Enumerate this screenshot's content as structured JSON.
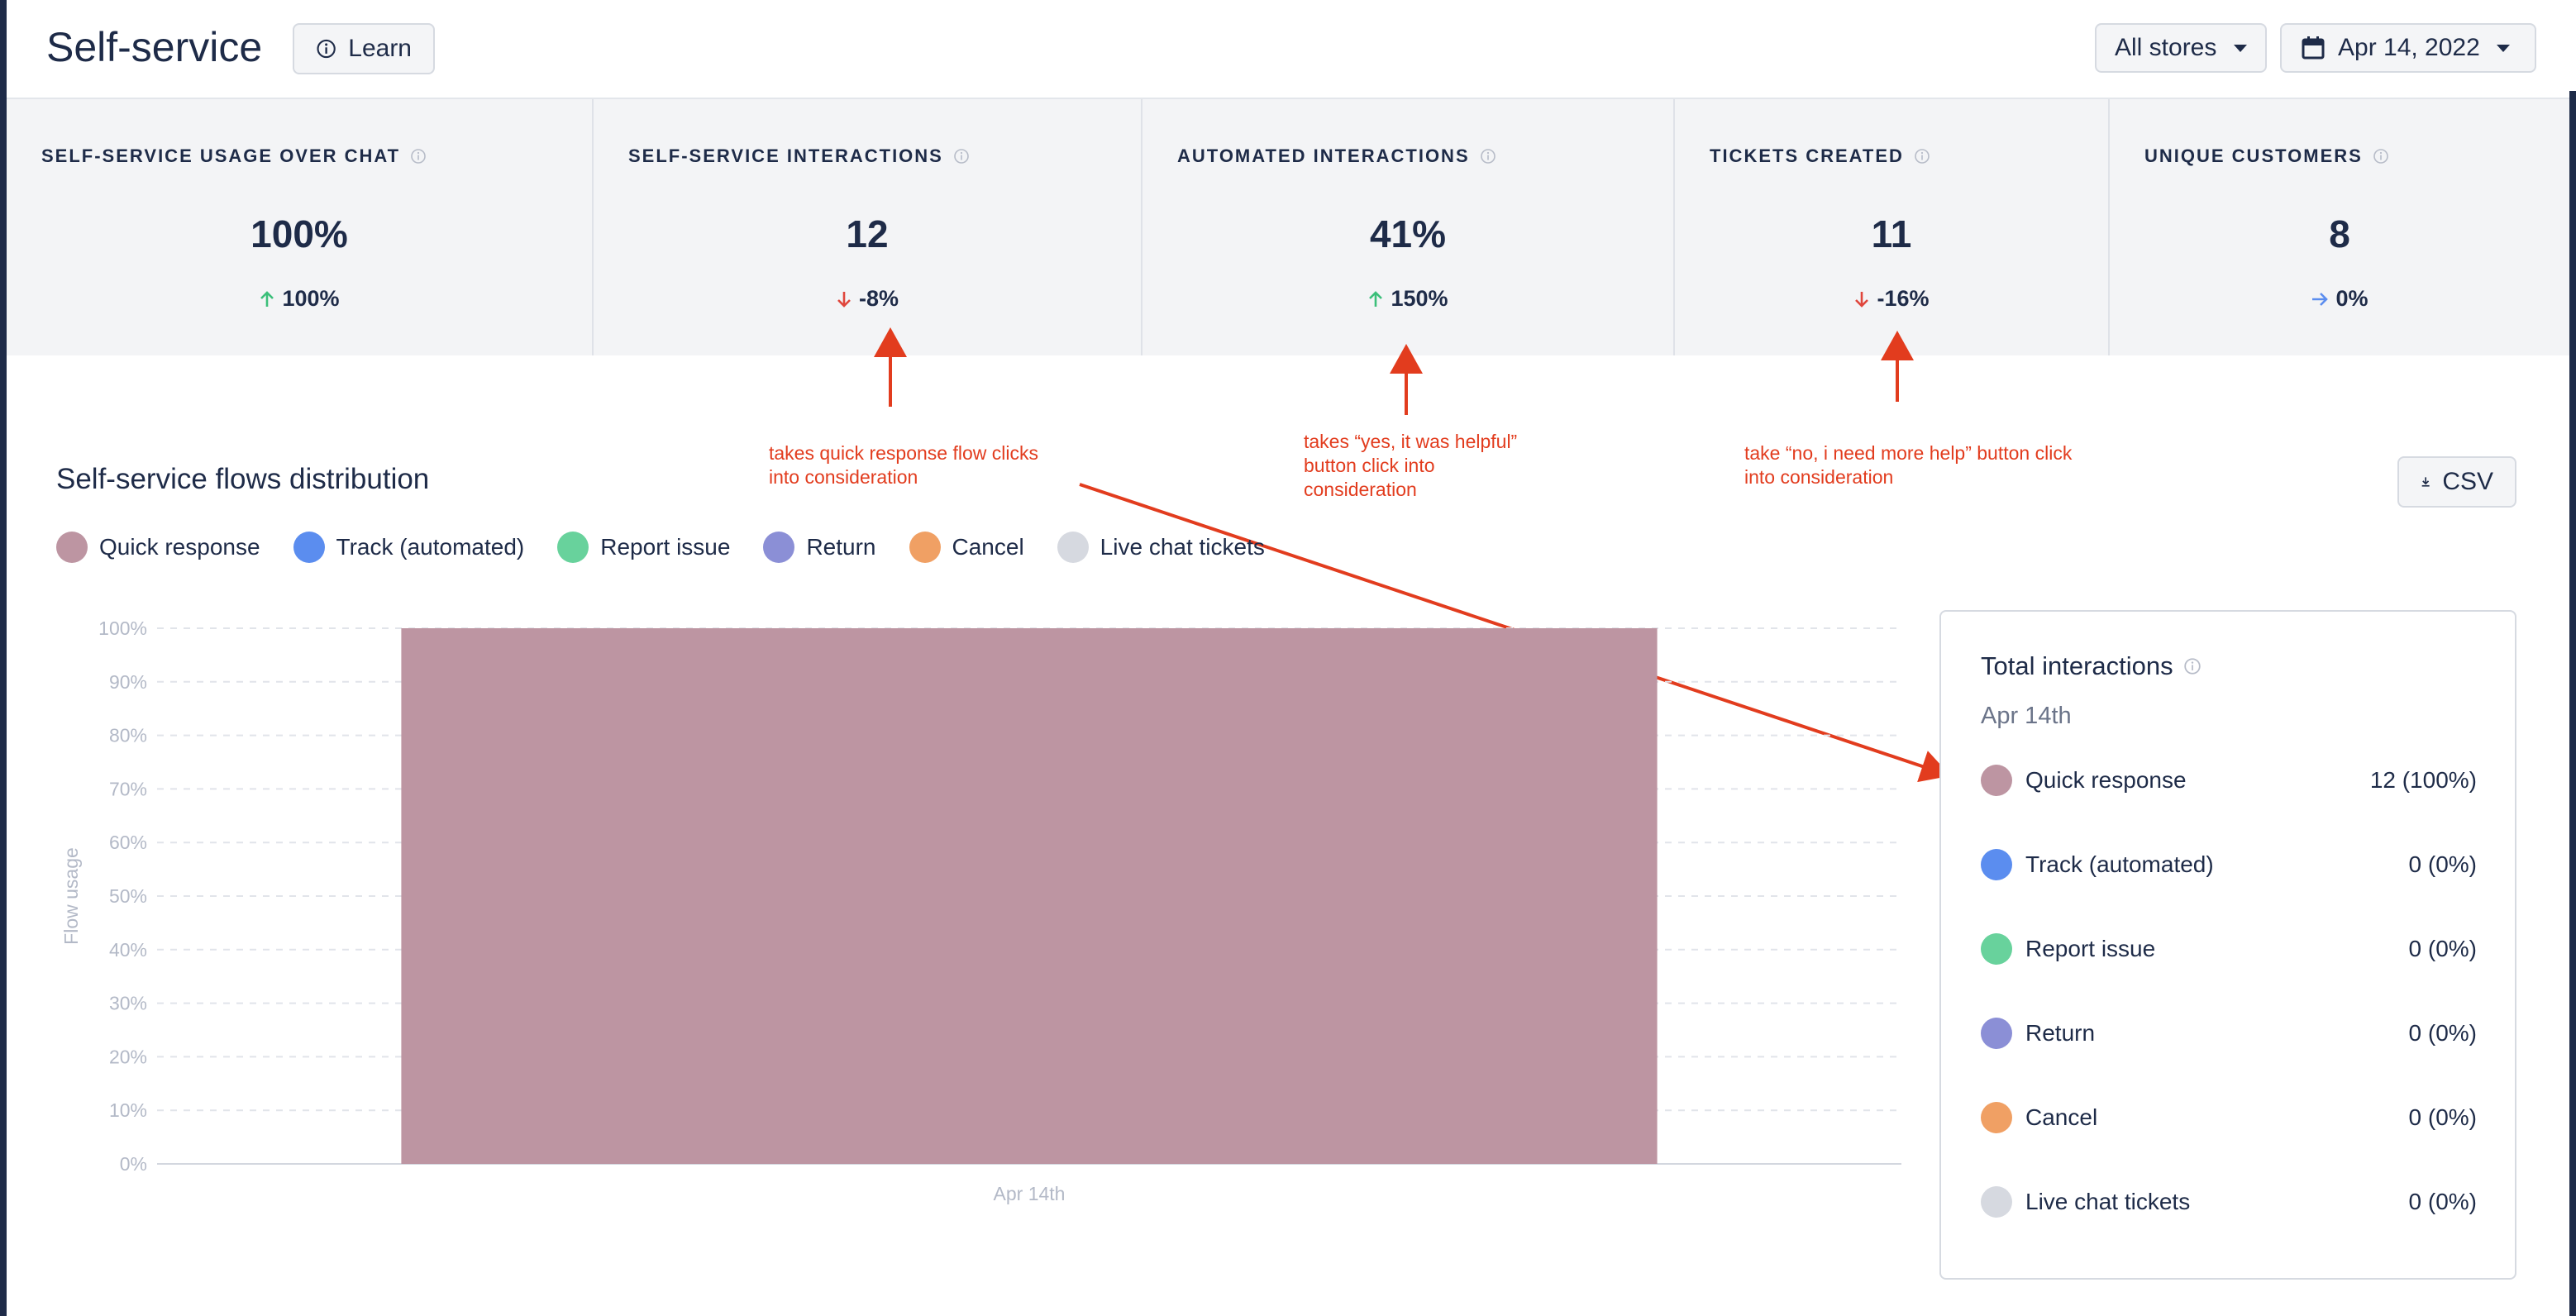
{
  "header": {
    "title": "Self-service",
    "learn_label": "Learn",
    "stores_label": "All stores",
    "date_label": "Apr 14, 2022"
  },
  "stats": [
    {
      "label": "SELF-SERVICE USAGE OVER CHAT",
      "value": "100%",
      "delta": "100%",
      "trend": "up"
    },
    {
      "label": "SELF-SERVICE INTERACTIONS",
      "value": "12",
      "delta": "-8%",
      "trend": "down"
    },
    {
      "label": "AUTOMATED INTERACTIONS",
      "value": "41%",
      "delta": "150%",
      "trend": "up"
    },
    {
      "label": "TICKETS CREATED",
      "value": "11",
      "delta": "-16%",
      "trend": "down"
    },
    {
      "label": "UNIQUE CUSTOMERS",
      "value": "8",
      "delta": "0%",
      "trend": "flat"
    }
  ],
  "annotations": [
    "takes quick response flow clicks\ninto consideration",
    "takes “yes, it was helpful”\nbutton click into\nconsideration",
    "take “no, i need more help” button click\n into consideration"
  ],
  "section": {
    "title": "Self-service flows distribution",
    "csv_label": "CSV"
  },
  "legend": [
    {
      "label": "Quick response",
      "color": "#bd95a2"
    },
    {
      "label": "Track (automated)",
      "color": "#5b8def"
    },
    {
      "label": "Report issue",
      "color": "#68d29c"
    },
    {
      "label": "Return",
      "color": "#8b8fd6"
    },
    {
      "label": "Cancel",
      "color": "#f0a064"
    },
    {
      "label": "Live chat tickets",
      "color": "#d6d9e0"
    }
  ],
  "chart_data": {
    "type": "bar",
    "categories": [
      "Apr 14th"
    ],
    "series": [
      {
        "name": "Quick response",
        "values": [
          100
        ]
      },
      {
        "name": "Track (automated)",
        "values": [
          0
        ]
      },
      {
        "name": "Report issue",
        "values": [
          0
        ]
      },
      {
        "name": "Return",
        "values": [
          0
        ]
      },
      {
        "name": "Cancel",
        "values": [
          0
        ]
      },
      {
        "name": "Live chat tickets",
        "values": [
          0
        ]
      }
    ],
    "stacked": true,
    "ylabel": "Flow usage",
    "xlabel": "",
    "ylim": [
      0,
      100
    ],
    "yticks": [
      "0%",
      "10%",
      "20%",
      "30%",
      "40%",
      "50%",
      "60%",
      "70%",
      "80%",
      "90%",
      "100%"
    ],
    "grid": true,
    "bar_color": "#bd95a2"
  },
  "total_panel": {
    "title": "Total interactions",
    "date": "Apr 14th",
    "rows": [
      {
        "label": "Quick response",
        "value": "12 (100%)",
        "color": "#bd95a2"
      },
      {
        "label": "Track (automated)",
        "value": "0 (0%)",
        "color": "#5b8def"
      },
      {
        "label": "Report issue",
        "value": "0 (0%)",
        "color": "#68d29c"
      },
      {
        "label": "Return",
        "value": "0 (0%)",
        "color": "#8b8fd6"
      },
      {
        "label": "Cancel",
        "value": "0 (0%)",
        "color": "#f0a064"
      },
      {
        "label": "Live chat tickets",
        "value": "0 (0%)",
        "color": "#d6d9e0"
      }
    ]
  },
  "colors": {
    "up": "#3bbf7a",
    "down": "#e0463c",
    "flat": "#5b8def",
    "annotation": "#e23c1e"
  }
}
